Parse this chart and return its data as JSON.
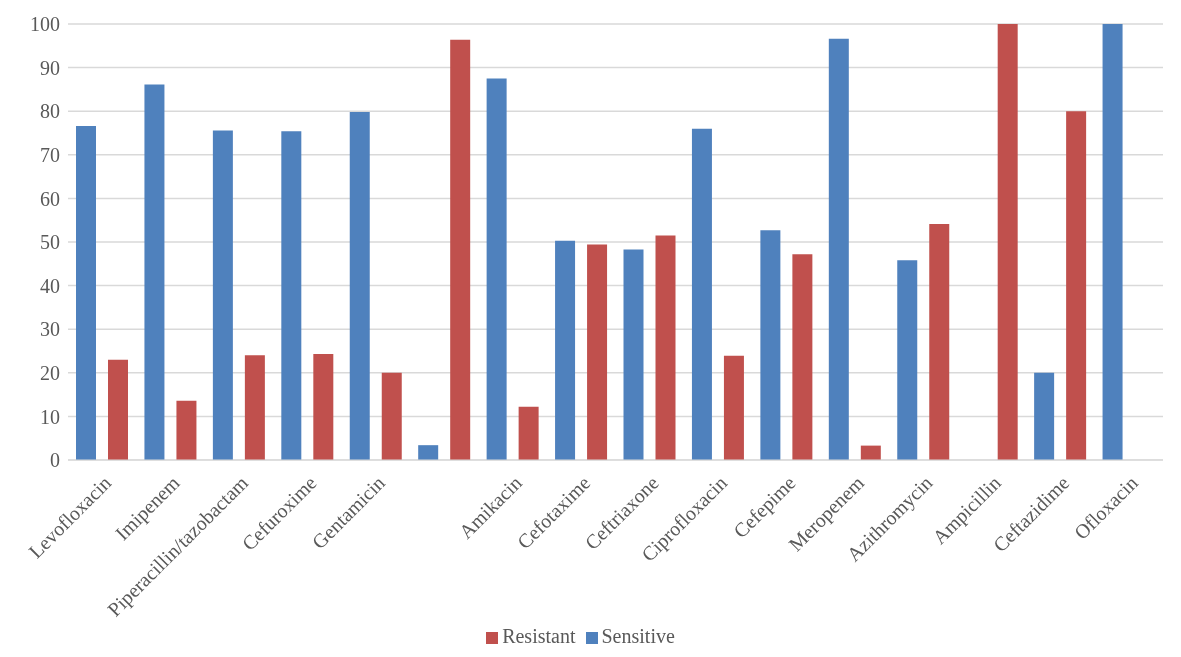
{
  "chart_data": {
    "type": "bar",
    "categories": [
      "Levofloxacin",
      "Imipenem",
      "Piperacillin/tazobactam",
      "Cefuroxime",
      "Gentamicin",
      null,
      "Amikacin",
      "Cefotaxime",
      "Ceftriaxone",
      "Ciprofloxacin",
      "Cefepime",
      "Meropenem",
      "Azithromycin",
      "Ampicillin",
      "Ceftazidime",
      "Ofloxacin"
    ],
    "series": [
      {
        "name": "Sensitive",
        "color": "#4f81bd",
        "values": [
          76.6,
          86.1,
          75.6,
          75.4,
          79.8,
          3.4,
          87.5,
          50.3,
          48.3,
          76.0,
          52.7,
          96.6,
          45.8,
          0,
          20,
          100
        ]
      },
      {
        "name": "Resistant",
        "color": "#c0504d",
        "values": [
          23.0,
          13.6,
          24.0,
          24.3,
          20.0,
          96.4,
          12.2,
          49.4,
          51.5,
          23.9,
          47.2,
          3.3,
          54.1,
          100,
          80,
          0
        ]
      }
    ],
    "ylim": [
      0,
      100
    ],
    "yticks": [
      0,
      10,
      20,
      30,
      40,
      50,
      60,
      70,
      80,
      90,
      100
    ],
    "grid": "y",
    "legend": "bottom"
  }
}
